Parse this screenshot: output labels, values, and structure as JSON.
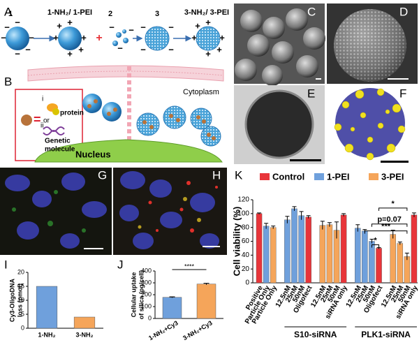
{
  "panel_labels": [
    "A",
    "B",
    "C",
    "D",
    "E",
    "F",
    "G",
    "H",
    "I",
    "J",
    "K"
  ],
  "scheme": {
    "particle_1": "1",
    "particle_1_mod": "1-NH₂/ 1-PEI",
    "particle_2": "2",
    "particle_3": "3",
    "particle_3_mod": "3-NH₂/ 3-PEI",
    "cytoplasm": "Cytoplasm",
    "nucleus": "Nucleus",
    "cargo_i": "i",
    "cargo_i_label": "protein",
    "equals": "=",
    "or": "or",
    "cargo_ii": "ii",
    "cargo_ii_label": [
      "Genetic",
      "molecule"
    ]
  },
  "chart_data": [
    {
      "type": "bar",
      "ylabel": [
        "Cy3-OligoDNA",
        "loss (pmol)"
      ],
      "categories": [
        "1-NH₂",
        "3-NH₂"
      ],
      "values": [
        15,
        4
      ],
      "colors": [
        "#6fa0dc",
        "#f5a55a"
      ],
      "ylim": [
        0,
        20
      ],
      "yticks": [
        0,
        5,
        10,
        15,
        20
      ]
    },
    {
      "type": "bar",
      "ylabel": [
        "Cellular uptake",
        "of silica (pg/cell)"
      ],
      "categories": [
        "1-NH₂+Cy3",
        "3-NH₂+Cy3"
      ],
      "values": [
        178,
        290
      ],
      "errors": [
        4,
        6
      ],
      "colors": [
        "#6fa0dc",
        "#f5a55a"
      ],
      "ylim": [
        0,
        400
      ],
      "yticks": [
        0,
        100,
        200,
        300,
        400
      ],
      "annotation": "****"
    },
    {
      "type": "grouped-bar",
      "ylabel": "Cell viability (%)",
      "legend": "top",
      "categories": [
        "Positive",
        "Particle Only",
        "Particle Only",
        null,
        "12.5nM",
        "25nM",
        "50nM",
        "Oligofect",
        null,
        "12.5nM",
        "25nM",
        "50nM",
        "siRNA only",
        null,
        "12.5nM",
        "25nM",
        "50nM",
        "Oligofect",
        null,
        "12.5nM",
        "25nM",
        "50nM",
        "siRNA only"
      ],
      "series": [
        {
          "name": "Control",
          "color": "#e8353a",
          "values": [
            100,
            null,
            null,
            null,
            null,
            null,
            null,
            95,
            null,
            null,
            null,
            null,
            98,
            null,
            null,
            null,
            null,
            50,
            null,
            null,
            null,
            null,
            98
          ],
          "errors": [
            1,
            null,
            null,
            null,
            null,
            null,
            null,
            2,
            null,
            null,
            null,
            null,
            2,
            null,
            null,
            null,
            null,
            1,
            null,
            null,
            null,
            null,
            3
          ]
        },
        {
          "name": "1-PEI",
          "color": "#6fa0dc",
          "values": [
            null,
            82,
            null,
            null,
            91,
            107,
            97,
            null,
            null,
            null,
            null,
            null,
            null,
            null,
            79,
            75,
            60,
            null,
            null,
            null,
            null,
            null,
            null
          ],
          "errors": [
            null,
            4,
            null,
            null,
            5,
            3,
            6,
            null,
            null,
            null,
            null,
            null,
            null,
            null,
            5,
            2,
            3,
            null,
            null,
            null,
            null,
            null,
            null
          ]
        },
        {
          "name": "3-PEI",
          "color": "#f5a55a",
          "values": [
            null,
            null,
            80,
            null,
            null,
            null,
            null,
            null,
            null,
            83,
            84,
            76,
            null,
            null,
            null,
            null,
            null,
            null,
            null,
            70,
            57,
            38,
            null
          ],
          "errors": [
            null,
            null,
            2,
            null,
            null,
            null,
            null,
            null,
            null,
            6,
            3,
            12,
            null,
            null,
            null,
            null,
            null,
            null,
            null,
            6,
            2,
            5,
            null
          ]
        }
      ],
      "group_labels": [
        "S10-siRNA",
        "PLK1-siRNA"
      ],
      "annotations": [
        "*",
        "p=0.07",
        "***",
        "*"
      ],
      "ylim": [
        0,
        120
      ],
      "yticks": [
        0,
        20,
        40,
        60,
        80,
        100,
        120
      ]
    }
  ]
}
